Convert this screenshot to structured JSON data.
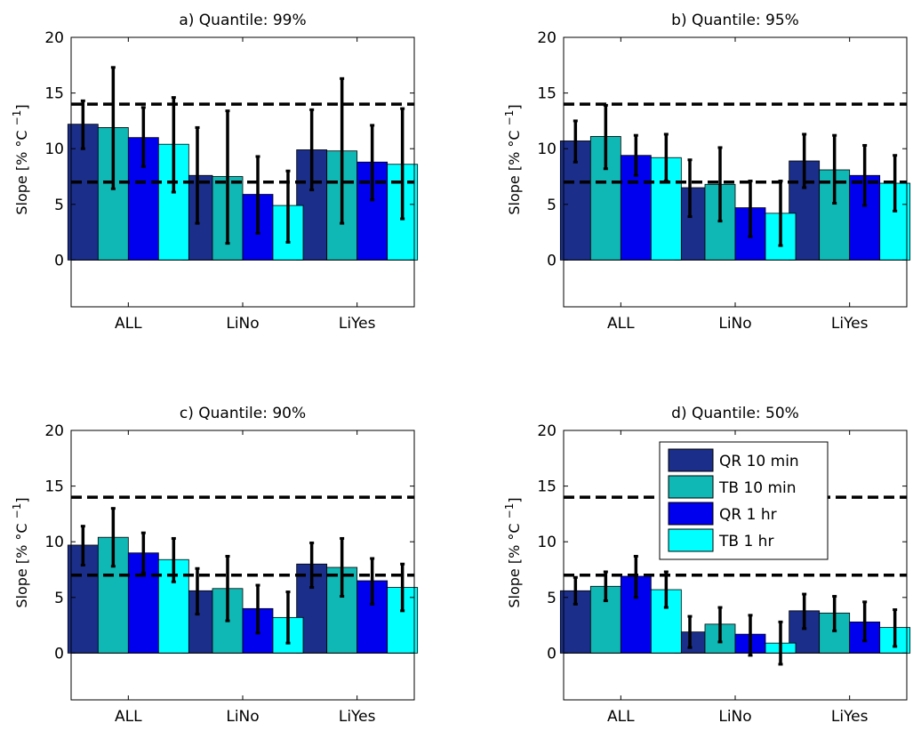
{
  "chart_data": [
    {
      "type": "bar",
      "title": "a) Quantile: 99%",
      "ylabel": "Slope [% °C ",
      "ylabel_sup": "−1",
      "ylabel_end": "]",
      "ylim": [
        -4.2,
        20
      ],
      "yticks": [
        0,
        5,
        10,
        15,
        20
      ],
      "categories": [
        "ALL",
        "LiNo",
        "LiYes"
      ],
      "reference_lines": [
        7,
        14
      ],
      "series": [
        {
          "name": "QR 10 min",
          "values": [
            12.2,
            7.6,
            9.9
          ],
          "err_low": [
            10.0,
            3.3,
            6.3
          ],
          "err_high": [
            14.3,
            11.9,
            13.5
          ]
        },
        {
          "name": "TB 10 min",
          "values": [
            11.9,
            7.5,
            9.8
          ],
          "err_low": [
            6.4,
            1.5,
            3.3
          ],
          "err_high": [
            17.3,
            13.4,
            16.3
          ]
        },
        {
          "name": "QR 1 hr",
          "values": [
            11.0,
            5.9,
            8.8
          ],
          "err_low": [
            8.4,
            2.4,
            5.4
          ],
          "err_high": [
            13.7,
            9.3,
            12.1
          ]
        },
        {
          "name": "TB 1 hr",
          "values": [
            10.4,
            4.9,
            8.6
          ],
          "err_low": [
            6.1,
            1.6,
            3.7
          ],
          "err_high": [
            14.6,
            8.0,
            13.6
          ]
        }
      ]
    },
    {
      "type": "bar",
      "title": "b) Quantile: 95%",
      "ylabel": "Slope [% °C ",
      "ylabel_sup": "−1",
      "ylabel_end": "]",
      "ylim": [
        -4.2,
        20
      ],
      "yticks": [
        0,
        5,
        10,
        15,
        20
      ],
      "categories": [
        "ALL",
        "LiNo",
        "LiYes"
      ],
      "reference_lines": [
        7,
        14
      ],
      "series": [
        {
          "name": "QR 10 min",
          "values": [
            10.7,
            6.5,
            8.9
          ],
          "err_low": [
            8.8,
            3.9,
            6.5
          ],
          "err_high": [
            12.5,
            9.0,
            11.3
          ]
        },
        {
          "name": "TB 10 min",
          "values": [
            11.1,
            6.8,
            8.1
          ],
          "err_low": [
            8.2,
            3.5,
            5.1
          ],
          "err_high": [
            13.9,
            10.1,
            11.2
          ]
        },
        {
          "name": "QR 1 hr",
          "values": [
            9.4,
            4.7,
            7.6
          ],
          "err_low": [
            7.6,
            2.1,
            4.9
          ],
          "err_high": [
            11.2,
            7.1,
            10.3
          ]
        },
        {
          "name": "TB 1 hr",
          "values": [
            9.2,
            4.2,
            6.9
          ],
          "err_low": [
            7.1,
            1.3,
            4.4
          ],
          "err_high": [
            11.3,
            7.1,
            9.4
          ]
        }
      ]
    },
    {
      "type": "bar",
      "title": "c) Quantile: 90%",
      "ylabel": "Slope [% °C ",
      "ylabel_sup": "−1",
      "ylabel_end": "]",
      "ylim": [
        -4.2,
        20
      ],
      "yticks": [
        0,
        5,
        10,
        15,
        20
      ],
      "categories": [
        "ALL",
        "LiNo",
        "LiYes"
      ],
      "reference_lines": [
        7,
        14
      ],
      "series": [
        {
          "name": "QR 10 min",
          "values": [
            9.7,
            5.6,
            8.0
          ],
          "err_low": [
            7.9,
            3.5,
            5.9
          ],
          "err_high": [
            11.4,
            7.6,
            9.9
          ]
        },
        {
          "name": "TB 10 min",
          "values": [
            10.4,
            5.8,
            7.7
          ],
          "err_low": [
            7.8,
            2.9,
            5.1
          ],
          "err_high": [
            13.0,
            8.7,
            10.3
          ]
        },
        {
          "name": "QR 1 hr",
          "values": [
            9.0,
            4.0,
            6.5
          ],
          "err_low": [
            7.2,
            1.8,
            4.4
          ],
          "err_high": [
            10.8,
            6.1,
            8.5
          ]
        },
        {
          "name": "TB 1 hr",
          "values": [
            8.4,
            3.2,
            5.9
          ],
          "err_low": [
            6.4,
            0.9,
            3.8
          ],
          "err_high": [
            10.3,
            5.5,
            8.0
          ]
        }
      ]
    },
    {
      "type": "bar",
      "title": "d) Quantile: 50%",
      "ylabel": "Slope [% °C ",
      "ylabel_sup": "−1",
      "ylabel_end": "]",
      "ylim": [
        -4.2,
        20
      ],
      "yticks": [
        0,
        5,
        10,
        15,
        20
      ],
      "categories": [
        "ALL",
        "LiNo",
        "LiYes"
      ],
      "reference_lines": [
        7,
        14
      ],
      "legend": {
        "placement": "top-right",
        "entries": [
          "QR 10 min",
          "TB 10 min",
          "QR 1 hr",
          "TB 1 hr"
        ]
      },
      "series": [
        {
          "name": "QR 10 min",
          "values": [
            5.6,
            1.9,
            3.8
          ],
          "err_low": [
            4.4,
            0.5,
            2.2
          ],
          "err_high": [
            6.8,
            3.3,
            5.3
          ]
        },
        {
          "name": "TB 10 min",
          "values": [
            6.0,
            2.6,
            3.6
          ],
          "err_low": [
            4.7,
            1.0,
            2.0
          ],
          "err_high": [
            7.3,
            4.1,
            5.1
          ]
        },
        {
          "name": "QR 1 hr",
          "values": [
            6.9,
            1.7,
            2.8
          ],
          "err_low": [
            5.0,
            -0.2,
            1.1
          ],
          "err_high": [
            8.7,
            3.4,
            4.6
          ]
        },
        {
          "name": "TB 1 hr",
          "values": [
            5.7,
            0.9,
            2.3
          ],
          "err_low": [
            4.1,
            -1.0,
            0.6
          ],
          "err_high": [
            7.3,
            2.8,
            3.9
          ]
        }
      ]
    }
  ],
  "colors": {
    "series": [
      "#1a2e8a",
      "#0fb8b4",
      "#0000ee",
      "#00ffff"
    ],
    "bar_edge": "#000000",
    "error_bar": "#000000",
    "reference_line": "#000000",
    "axis": "#000000",
    "background": "#ffffff"
  }
}
